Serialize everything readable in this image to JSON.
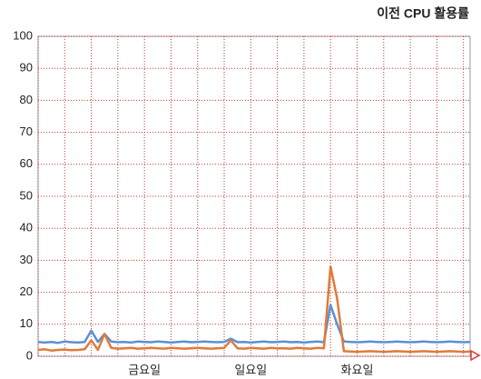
{
  "chart_data": {
    "type": "line",
    "title": "이전 CPU 활용률",
    "categories": [
      null,
      null,
      null,
      null,
      null,
      null,
      null,
      null,
      null,
      null,
      null,
      null,
      null,
      null,
      null,
      null,
      "금요일",
      null,
      null,
      null,
      null,
      null,
      null,
      null,
      null,
      null,
      null,
      null,
      null,
      null,
      null,
      null,
      "일요일",
      null,
      null,
      null,
      null,
      null,
      null,
      null,
      null,
      null,
      null,
      null,
      null,
      null,
      null,
      null,
      "화요일",
      null,
      null,
      null,
      null,
      null,
      null,
      null,
      null,
      null,
      null,
      null,
      null,
      null,
      null,
      null,
      null,
      null
    ],
    "series": [
      {
        "color": "#5b8fd6",
        "values": [
          4.5,
          4.3,
          4.5,
          4.2,
          4.6,
          4.4,
          4.3,
          4.5,
          8,
          4.5,
          7,
          4.6,
          4.4,
          4.5,
          4.3,
          4.6,
          4.5,
          4.4,
          4.6,
          4.5,
          4.3,
          4.5,
          4.6,
          4.4,
          4.5,
          4.6,
          4.5,
          4.4,
          4.5,
          5.5,
          4.4,
          4.5,
          4.3,
          4.5,
          4.6,
          4.4,
          4.5,
          4.6,
          4.4,
          4.5,
          4.3,
          4.5,
          4.6,
          4.4,
          16,
          10,
          4.6,
          4.5,
          4.4,
          4.5,
          4.6,
          4.5,
          4.4,
          4.5,
          4.6,
          4.5,
          4.4,
          4.5,
          4.6,
          4.5,
          4.4,
          4.5,
          4.6,
          4.5,
          4.4,
          4.5
        ]
      },
      {
        "color": "#e07a3a",
        "values": [
          2,
          2.2,
          1.8,
          2,
          2.1,
          1.9,
          2,
          2.2,
          5,
          2,
          7,
          2.6,
          2.4,
          2.5,
          2.6,
          2.4,
          2.5,
          2.6,
          2.5,
          2.4,
          2.6,
          2.5,
          2.4,
          2.5,
          2.6,
          2.5,
          2.4,
          2.5,
          2.6,
          5,
          2.5,
          2.4,
          2.6,
          2.5,
          2.4,
          2.6,
          2.5,
          2.5,
          2.4,
          2.6,
          2.5,
          2.4,
          2.6,
          2.5,
          28,
          18,
          1.6,
          1.5,
          1.4,
          1.5,
          1.6,
          1.5,
          1.4,
          1.5,
          1.6,
          1.5,
          1.4,
          1.5,
          1.6,
          1.5,
          1.4,
          1.5,
          1.6,
          1.5,
          1.4,
          1.5
        ]
      }
    ],
    "ylim": [
      0,
      100
    ],
    "yticks": [
      0,
      10,
      20,
      30,
      40,
      50,
      60,
      70,
      80,
      90,
      100
    ],
    "grid": true
  }
}
